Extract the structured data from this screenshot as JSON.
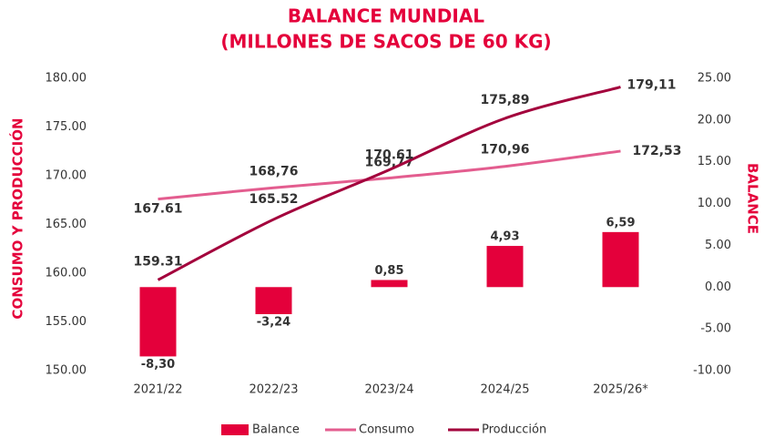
{
  "chart_data": {
    "type": "combo",
    "title": "BALANCE MUNDIAL",
    "subtitle": "(MILLONES DE SACOS DE 60 KG)",
    "ylabel": "CONSUMO Y PRODUCCIÓN",
    "y2label": "BALANCE",
    "categories": [
      "2021/22",
      "2022/23",
      "2023/24",
      "2024/25",
      "2025/26*"
    ],
    "series": [
      {
        "name": "Balance",
        "type": "bar",
        "axis": "y2",
        "color": "#e4003b",
        "values": [
          -8.3,
          -3.24,
          0.85,
          4.93,
          6.59
        ],
        "value_labels": [
          "-8,30",
          "-3,24",
          "0,85",
          "4,93",
          "6,59"
        ]
      },
      {
        "name": "Consumo",
        "type": "line",
        "color": "#e35d8f",
        "values": [
          167.61,
          168.76,
          169.77,
          170.96,
          172.53
        ],
        "value_labels": [
          "167.61",
          "168,76",
          "169,77",
          "170,96",
          "172,53"
        ]
      },
      {
        "name": "Producción",
        "type": "line",
        "color": "#a3003c",
        "values": [
          159.31,
          165.52,
          170.61,
          175.89,
          179.11
        ],
        "value_labels": [
          "159.31",
          "165.52",
          "170.61",
          "175,89",
          "179,11"
        ]
      }
    ],
    "ylim": [
      150,
      180
    ],
    "yticks": [
      {
        "value": 150,
        "label": "150.00"
      },
      {
        "value": 155,
        "label": "155.00"
      },
      {
        "value": 160,
        "label": "160.00"
      },
      {
        "value": 165,
        "label": "165.00"
      },
      {
        "value": 170,
        "label": "170.00"
      },
      {
        "value": 175,
        "label": "175.00"
      },
      {
        "value": 180,
        "label": "180.00"
      }
    ],
    "y2lim": [
      -10,
      25
    ],
    "y2ticks": [
      {
        "value": -10,
        "label": "-10.00"
      },
      {
        "value": -5,
        "label": "-5.00"
      },
      {
        "value": 0,
        "label": "0.00"
      },
      {
        "value": 5,
        "label": "5.00"
      },
      {
        "value": 10,
        "label": "10.00"
      },
      {
        "value": 15,
        "label": "15.00"
      },
      {
        "value": 20,
        "label": "20.00"
      },
      {
        "value": 25,
        "label": "25.00"
      }
    ],
    "grid": false,
    "legend": "bottom"
  }
}
